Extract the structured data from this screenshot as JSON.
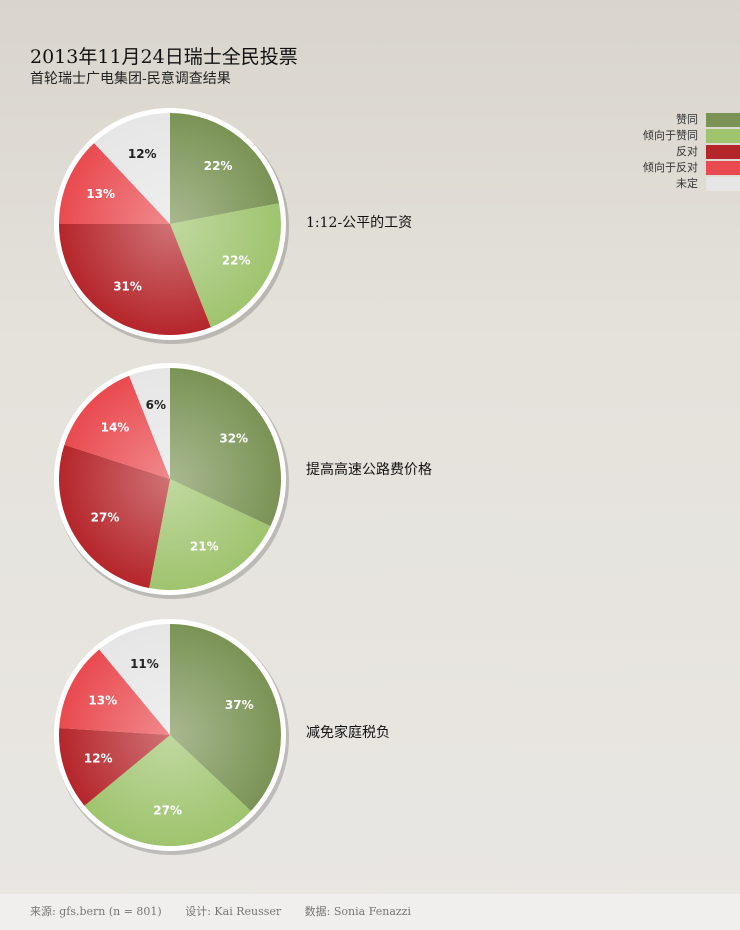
{
  "title": "2013年11月24日瑞士全民投票",
  "subtitle": "首轮瑞士广电集团-民意调查结果",
  "legend": [
    {
      "label": "赞同",
      "color": "#7a9355"
    },
    {
      "label": "倾向于赞同",
      "color": "#9fc46e"
    },
    {
      "label": "反对",
      "color": "#b5262b"
    },
    {
      "label": "倾向于反对",
      "color": "#e94a4f"
    },
    {
      "label": "未定",
      "color": "#e6e6e6"
    }
  ],
  "chart_data": [
    {
      "type": "pie",
      "title": "1:12-公平的工资",
      "categories": [
        "赞同",
        "倾向于赞同",
        "反对",
        "倾向于反对",
        "未定"
      ],
      "values": [
        22,
        22,
        31,
        13,
        12
      ],
      "labels": [
        "22%",
        "22%",
        "31%",
        "13%",
        "12%"
      ]
    },
    {
      "type": "pie",
      "title": "提高高速公路费价格",
      "categories": [
        "赞同",
        "倾向于赞同",
        "反对",
        "倾向于反对",
        "未定"
      ],
      "values": [
        32,
        21,
        27,
        14,
        6
      ],
      "labels": [
        "32%",
        "21%",
        "27%",
        "14%",
        "6%"
      ]
    },
    {
      "type": "pie",
      "title": "减免家庭税负",
      "categories": [
        "赞同",
        "倾向于赞同",
        "反对",
        "倾向于反对",
        "未定"
      ],
      "values": [
        37,
        27,
        12,
        13,
        11
      ],
      "labels": [
        "37%",
        "27%",
        "12%",
        "13%",
        "11%"
      ]
    }
  ],
  "footer": {
    "source": "来源: gfs.bern (n = 801)",
    "design": "设计: Kai Reusser",
    "data": "数据: Sonia Fenazzi"
  }
}
